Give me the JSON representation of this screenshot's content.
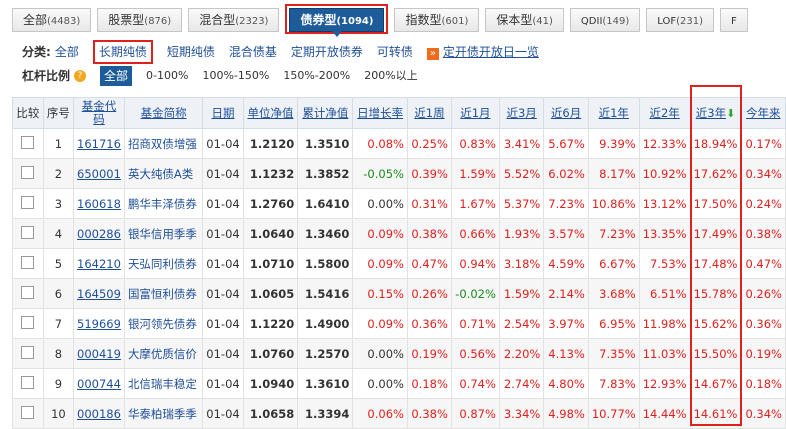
{
  "tabs": [
    {
      "label": "全部",
      "count": "(4483)"
    },
    {
      "label": "股票型",
      "count": "(876)"
    },
    {
      "label": "混合型",
      "count": "(2323)"
    },
    {
      "label": "债券型",
      "count": "(1094)"
    },
    {
      "label": "指数型",
      "count": "(601)"
    },
    {
      "label": "保本型",
      "count": "(41)"
    },
    {
      "label": "QDII",
      "count": "(149)"
    },
    {
      "label": "LOF",
      "count": "(231)"
    },
    {
      "label": "F",
      "count": ""
    }
  ],
  "category": {
    "label": "分类:",
    "items": [
      "全部",
      "长期纯债",
      "短期纯债",
      "混合债基",
      "定期开放债券",
      "可转债"
    ],
    "plan_link": "定开债开放日一览"
  },
  "leverage": {
    "label": "杠杆比例",
    "items": [
      "全部",
      "0-100%",
      "100%-150%",
      "150%-200%",
      "200%以上"
    ]
  },
  "table": {
    "headers": [
      "比较",
      "序号",
      "基金代码",
      "基金简称",
      "日期",
      "单位净值",
      "累计净值",
      "日增长率",
      "近1周",
      "近1月",
      "近3月",
      "近6月",
      "近1年",
      "近2年",
      "近3年",
      "今年来"
    ],
    "rows": [
      [
        "1",
        "161716",
        "招商双债增强",
        "01-04",
        "1.2120",
        "1.3510",
        "0.08%",
        "0.25%",
        "0.83%",
        "3.41%",
        "5.67%",
        "9.39%",
        "12.33%",
        "18.94%",
        "0.17%"
      ],
      [
        "2",
        "650001",
        "英大纯债A类",
        "01-04",
        "1.1232",
        "1.3852",
        "-0.05%",
        "0.39%",
        "1.59%",
        "5.52%",
        "6.02%",
        "8.17%",
        "10.92%",
        "17.62%",
        "0.34%"
      ],
      [
        "3",
        "160618",
        "鹏华丰泽债券",
        "01-04",
        "1.2760",
        "1.6410",
        "0.00%",
        "0.31%",
        "1.67%",
        "5.37%",
        "7.23%",
        "10.86%",
        "13.12%",
        "17.50%",
        "0.24%"
      ],
      [
        "4",
        "000286",
        "银华信用季季",
        "01-04",
        "1.0640",
        "1.3460",
        "0.09%",
        "0.38%",
        "0.66%",
        "1.93%",
        "3.57%",
        "7.23%",
        "13.35%",
        "17.49%",
        "0.38%"
      ],
      [
        "5",
        "164210",
        "天弘同利债券",
        "01-04",
        "1.0710",
        "1.5800",
        "0.09%",
        "0.47%",
        "0.94%",
        "3.18%",
        "4.59%",
        "6.67%",
        "7.53%",
        "17.48%",
        "0.47%"
      ],
      [
        "6",
        "164509",
        "国富恒利债券",
        "01-04",
        "1.0605",
        "1.5416",
        "0.15%",
        "0.26%",
        "-0.02%",
        "1.59%",
        "2.14%",
        "3.68%",
        "6.51%",
        "15.78%",
        "0.26%"
      ],
      [
        "7",
        "519669",
        "银河领先债券",
        "01-04",
        "1.1220",
        "1.4900",
        "0.09%",
        "0.36%",
        "0.71%",
        "2.54%",
        "3.97%",
        "6.95%",
        "11.98%",
        "15.62%",
        "0.36%"
      ],
      [
        "8",
        "000419",
        "大摩优质信价",
        "01-04",
        "1.0760",
        "1.2570",
        "0.00%",
        "0.19%",
        "0.56%",
        "2.20%",
        "4.13%",
        "7.35%",
        "11.03%",
        "15.50%",
        "0.19%"
      ],
      [
        "9",
        "000744",
        "北信瑞丰稳定",
        "01-04",
        "1.0940",
        "1.3610",
        "0.00%",
        "0.18%",
        "0.74%",
        "2.74%",
        "4.80%",
        "7.83%",
        "12.93%",
        "14.67%",
        "0.18%"
      ],
      [
        "10",
        "000186",
        "华泰柏瑞季季",
        "01-04",
        "1.0658",
        "1.3394",
        "0.06%",
        "0.38%",
        "0.87%",
        "3.34%",
        "4.98%",
        "10.77%",
        "14.44%",
        "14.61%",
        "0.34%"
      ]
    ]
  },
  "colors": {
    "accent": "#1d5b99",
    "highlight": "#e0201c",
    "up": "#e0201c",
    "down": "#1a8a1a"
  },
  "icons": {
    "plan": "plan-icon",
    "help": "question-icon",
    "sort": "sort-down-arrow-icon"
  }
}
